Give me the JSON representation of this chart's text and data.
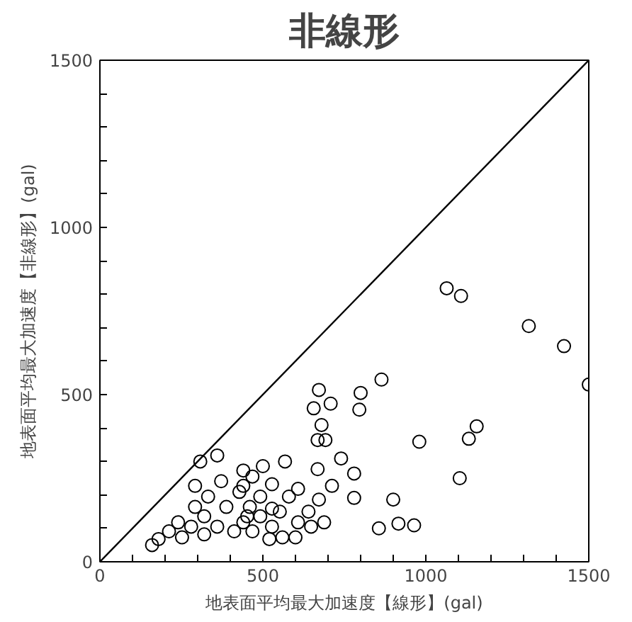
{
  "chart_data": {
    "type": "scatter",
    "title": "非線形",
    "xlabel": "地表面平均最大加速度【線形】(gal)",
    "ylabel": "地表面平均最大加速度【非線形】(gal)",
    "xlim": [
      0,
      1500
    ],
    "ylim": [
      0,
      1500
    ],
    "xticks": [
      0,
      {
        "value": 100,
        "label": null
      },
      {
        "value": 200,
        "label": null
      },
      {
        "value": 300,
        "label": null
      },
      {
        "value": 400,
        "label": null
      },
      500,
      {
        "value": 600,
        "label": null
      },
      {
        "value": 700,
        "label": null
      },
      {
        "value": 800,
        "label": null
      },
      {
        "value": 900,
        "label": null
      },
      1000,
      {
        "value": 1100,
        "label": null
      },
      {
        "value": 1200,
        "label": null
      },
      {
        "value": 1300,
        "label": null
      },
      {
        "value": 1400,
        "label": null
      },
      1500
    ],
    "yticks": [
      0,
      {
        "value": 100,
        "label": null
      },
      {
        "value": 200,
        "label": null
      },
      {
        "value": 300,
        "label": null
      },
      {
        "value": 400,
        "label": null
      },
      500,
      {
        "value": 600,
        "label": null
      },
      {
        "value": 700,
        "label": null
      },
      {
        "value": 800,
        "label": null
      },
      {
        "value": 900,
        "label": null
      },
      1000,
      {
        "value": 1100,
        "label": null
      },
      {
        "value": 1200,
        "label": null
      },
      {
        "value": 1300,
        "label": null
      },
      {
        "value": 1400,
        "label": null
      },
      1500
    ],
    "grid": false,
    "series": [
      {
        "marker": "circle",
        "color": "#000000",
        "x": [
          1500,
          1424,
          1316,
          1156,
          1132,
          1104,
          1108,
          1064,
          980,
          964,
          916,
          900,
          856,
          864,
          800,
          796,
          780,
          780,
          740,
          708,
          680,
          692,
          668,
          672,
          656,
          712,
          672,
          688,
          668,
          640,
          648,
          608,
          608,
          600,
          580,
          568,
          552,
          560,
          528,
          528,
          528,
          520,
          500,
          492,
          492,
          468,
          460,
          468,
          440,
          440,
          440,
          428,
          452,
          412,
          372,
          388,
          360,
          332,
          320,
          320,
          292,
          280,
          252,
          240,
          360,
          308,
          292,
          212,
          180,
          160
        ],
        "values": [
          530,
          645,
          705,
          405,
          368,
          250,
          795,
          818,
          359,
          109,
          114,
          186,
          100,
          545,
          505,
          455,
          264,
          191,
          309,
          473,
          409,
          364,
          364,
          514,
          459,
          227,
          186,
          118,
          277,
          150,
          105,
          218,
          118,
          73,
          195,
          300,
          150,
          73,
          232,
          159,
          105,
          68,
          286,
          195,
          136,
          255,
          164,
          91,
          227,
          118,
          273,
          209,
          136,
          91,
          241,
          164,
          105,
          195,
          136,
          82,
          164,
          105,
          73,
          118,
          318,
          300,
          227,
          91,
          68,
          50
        ]
      },
      {
        "type": "line",
        "color": "#000000",
        "x": [
          0,
          1500
        ],
        "values": [
          0,
          1500
        ]
      }
    ]
  }
}
